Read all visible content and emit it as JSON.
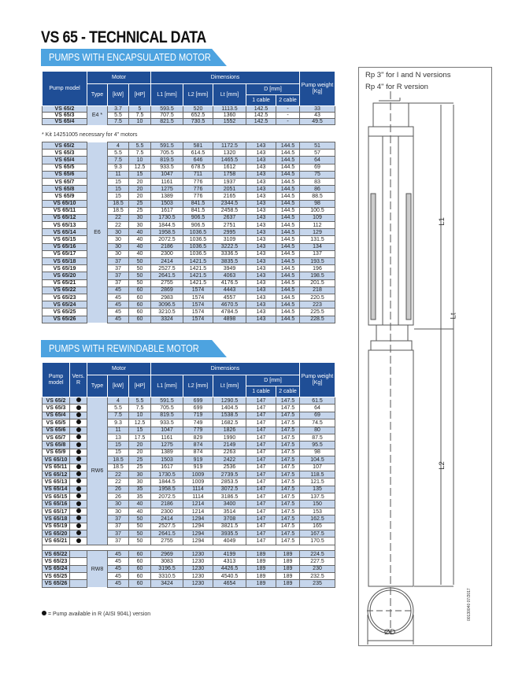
{
  "title": "VS 65 - TECHNICAL DATA",
  "sections": {
    "encapsulated": "PUMPS WITH ENCAPSULATED MOTOR",
    "rewindable": "PUMPS WITH REWINDABLE MOTOR"
  },
  "headers": {
    "pump_model": "Pump model",
    "vers": "Vers. R",
    "motor": "Motor",
    "type": "Type",
    "kw": "[kW]",
    "hp": "[HP]",
    "dimensions": "Dimensions",
    "l1": "L1 [mm]",
    "l2": "L2 [mm]",
    "lt": "Lt [mm]",
    "d": "D [mm]",
    "cable1": "1 cable",
    "cable2": "2 cable",
    "weight": "Pump weight [Kg]"
  },
  "table_e4": {
    "type": "E4 *",
    "rows": [
      [
        "VS 65/2",
        "3.7",
        "5",
        "593.5",
        "520",
        "1113.5",
        "142.5",
        "-",
        "33"
      ],
      [
        "VS 65/3",
        "5.5",
        "7.5",
        "707.5",
        "652.5",
        "1360",
        "142.5",
        "-",
        "43"
      ],
      [
        "VS 65/4",
        "7.5",
        "10",
        "821.5",
        "730.5",
        "1552",
        "142.5",
        "-",
        "49.5"
      ]
    ]
  },
  "note_kit": "* Kit 14251005 necessary for 4\" motors",
  "table_e6": {
    "type": "E6",
    "rows": [
      [
        "VS 65/2",
        "4",
        "5.5",
        "591.5",
        "581",
        "1172.5",
        "143",
        "144.5",
        "51"
      ],
      [
        "VS 65/3",
        "5.5",
        "7.5",
        "705.5",
        "614.5",
        "1320",
        "143",
        "144.5",
        "57"
      ],
      [
        "VS 65/4",
        "7.5",
        "10",
        "819.5",
        "646",
        "1465.5",
        "143",
        "144.5",
        "64"
      ],
      [
        "VS 65/5",
        "9.3",
        "12.5",
        "933.5",
        "678.5",
        "1612",
        "143",
        "144.5",
        "69"
      ],
      [
        "VS 65/6",
        "11",
        "15",
        "1047",
        "711",
        "1758",
        "143",
        "144.5",
        "75"
      ],
      [
        "VS 65/7",
        "15",
        "20",
        "1161",
        "776",
        "1937",
        "143",
        "144.5",
        "83"
      ],
      [
        "VS 65/8",
        "15",
        "20",
        "1275",
        "776",
        "2051",
        "143",
        "144.5",
        "86"
      ],
      [
        "VS 65/9",
        "15",
        "20",
        "1389",
        "776",
        "2165",
        "143",
        "144.5",
        "88.5"
      ],
      [
        "VS 65/10",
        "18.5",
        "25",
        "1503",
        "841.5",
        "2344.5",
        "143",
        "144.5",
        "98"
      ],
      [
        "VS 65/11",
        "18.5",
        "25",
        "1617",
        "841.5",
        "2458.5",
        "143",
        "144.5",
        "100.5"
      ],
      [
        "VS 65/12",
        "22",
        "30",
        "1730.5",
        "906.5",
        "2637",
        "143",
        "144.5",
        "109"
      ],
      [
        "VS 65/13",
        "22",
        "30",
        "1844.5",
        "906.5",
        "2751",
        "143",
        "144.5",
        "112"
      ],
      [
        "VS 65/14",
        "30",
        "40",
        "1958.5",
        "1036.5",
        "2995",
        "143",
        "144.5",
        "129"
      ],
      [
        "VS 65/15",
        "30",
        "40",
        "2072.5",
        "1036.5",
        "3109",
        "143",
        "144.5",
        "131.5"
      ],
      [
        "VS 65/16",
        "30",
        "40",
        "2186",
        "1036.5",
        "3222.5",
        "143",
        "144.5",
        "134"
      ],
      [
        "VS 65/17",
        "30",
        "40",
        "2300",
        "1036.5",
        "3336.5",
        "143",
        "144.5",
        "137"
      ],
      [
        "VS 65/18",
        "37",
        "50",
        "2414",
        "1421.5",
        "3835.5",
        "143",
        "144.5",
        "193.5"
      ],
      [
        "VS 65/19",
        "37",
        "50",
        "2527.5",
        "1421.5",
        "3949",
        "143",
        "144.5",
        "196"
      ],
      [
        "VS 65/20",
        "37",
        "50",
        "2641.5",
        "1421.5",
        "4063",
        "143",
        "144.5",
        "198.5"
      ],
      [
        "VS 65/21",
        "37",
        "50",
        "2755",
        "1421.5",
        "4176.5",
        "143",
        "144.5",
        "201.5"
      ],
      [
        "VS 65/22",
        "45",
        "60",
        "2869",
        "1574",
        "4443",
        "143",
        "144.5",
        "218"
      ],
      [
        "VS 65/23",
        "45",
        "60",
        "2983",
        "1574",
        "4557",
        "143",
        "144.5",
        "220.5"
      ],
      [
        "VS 65/24",
        "45",
        "60",
        "3096.5",
        "1574",
        "4670.5",
        "143",
        "144.5",
        "223"
      ],
      [
        "VS 65/25",
        "45",
        "60",
        "3210.5",
        "1574",
        "4784.5",
        "143",
        "144.5",
        "225.5"
      ],
      [
        "VS 65/26",
        "45",
        "60",
        "3324",
        "1574",
        "4898",
        "143",
        "144.5",
        "228.5"
      ]
    ]
  },
  "table_rw6": {
    "type": "RW6",
    "rows": [
      [
        "VS 65/2",
        "4",
        "5.5",
        "591.5",
        "699",
        "1290.5",
        "147",
        "147.5",
        "61.5"
      ],
      [
        "VS 65/3",
        "5.5",
        "7.5",
        "705.5",
        "699",
        "1404.5",
        "147",
        "147.5",
        "64"
      ],
      [
        "VS 65/4",
        "7.5",
        "10",
        "819.5",
        "719",
        "1538.5",
        "147",
        "147.5",
        "69"
      ],
      [
        "VS 65/5",
        "9.3",
        "12.5",
        "933.5",
        "749",
        "1682.5",
        "147",
        "147.5",
        "74.5"
      ],
      [
        "VS 65/6",
        "11",
        "15",
        "1047",
        "779",
        "1826",
        "147",
        "147.5",
        "80"
      ],
      [
        "VS 65/7",
        "13",
        "17.5",
        "1161",
        "829",
        "1990",
        "147",
        "147.5",
        "87.5"
      ],
      [
        "VS 65/8",
        "15",
        "20",
        "1275",
        "874",
        "2149",
        "147",
        "147.5",
        "95.5"
      ],
      [
        "VS 65/9",
        "15",
        "20",
        "1389",
        "874",
        "2263",
        "147",
        "147.5",
        "98"
      ],
      [
        "VS 65/10",
        "18.5",
        "25",
        "1503",
        "919",
        "2422",
        "147",
        "147.5",
        "104.5"
      ],
      [
        "VS 65/11",
        "18.5",
        "25",
        "1617",
        "919",
        "2536",
        "147",
        "147.5",
        "107"
      ],
      [
        "VS 65/12",
        "22",
        "30",
        "1730.5",
        "1009",
        "2739.5",
        "147",
        "147.5",
        "118.5"
      ],
      [
        "VS 65/13",
        "22",
        "30",
        "1844.5",
        "1009",
        "2853.5",
        "147",
        "147.5",
        "121.5"
      ],
      [
        "VS 65/14",
        "26",
        "35",
        "1958.5",
        "1114",
        "3072.5",
        "147",
        "147.5",
        "135"
      ],
      [
        "VS 65/15",
        "26",
        "35",
        "2072.5",
        "1114",
        "3186.5",
        "147",
        "147.5",
        "137.5"
      ],
      [
        "VS 65/16",
        "30",
        "40",
        "2186",
        "1214",
        "3400",
        "147",
        "147.5",
        "150"
      ],
      [
        "VS 65/17",
        "30",
        "40",
        "2300",
        "1214",
        "3514",
        "147",
        "147.5",
        "153"
      ],
      [
        "VS 65/18",
        "37",
        "50",
        "2414",
        "1294",
        "3708",
        "147",
        "147.5",
        "162.5"
      ],
      [
        "VS 65/19",
        "37",
        "50",
        "2527.5",
        "1294",
        "3821.5",
        "147",
        "147.5",
        "165"
      ],
      [
        "VS 65/20",
        "37",
        "50",
        "2641.5",
        "1294",
        "3935.5",
        "147",
        "147.5",
        "167.5"
      ],
      [
        "VS 65/21",
        "37",
        "50",
        "2755",
        "1294",
        "4049",
        "147",
        "147.5",
        "170.5"
      ]
    ]
  },
  "table_rw8": {
    "type": "RW8",
    "rows": [
      [
        "VS 65/22",
        "45",
        "60",
        "2969",
        "1230",
        "4199",
        "189",
        "189",
        "224.5"
      ],
      [
        "VS 65/23",
        "45",
        "60",
        "3083",
        "1230",
        "4313",
        "189",
        "189",
        "227.5"
      ],
      [
        "VS 65/24",
        "45",
        "60",
        "3196.5",
        "1230",
        "4426.5",
        "189",
        "189",
        "230"
      ],
      [
        "VS 65/25",
        "45",
        "60",
        "3310.5",
        "1230",
        "4540.5",
        "189",
        "189",
        "232.5"
      ],
      [
        "VS 65/26",
        "45",
        "60",
        "3424",
        "1230",
        "4654",
        "189",
        "189",
        "235"
      ]
    ]
  },
  "note_r": "= Pump available in R (AISI 904L) version",
  "drawing": {
    "label_rp3": "Rp 3\" for I and N versions",
    "label_rp4": "Rp 4\" for R version",
    "l1": "L1",
    "lt": "Lt",
    "l2": "L2",
    "od": "ØD",
    "code": "00130040 07/2017"
  },
  "colors": {
    "header": "#1f4e96",
    "banner": "#4da3e0",
    "row_alt": "#c6d6ec"
  }
}
